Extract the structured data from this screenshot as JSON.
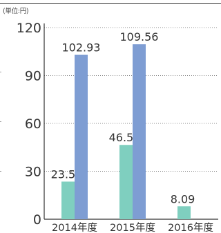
{
  "unit_label": "(単位:円)",
  "chart_data": {
    "type": "bar",
    "categories": [
      "2014年度",
      "2015年度",
      "2016年度"
    ],
    "series": [
      {
        "color": "#7fcfbf",
        "values": [
          23.55,
          46.52,
          8.09
        ]
      },
      {
        "color": "#7e9dd3",
        "values": [
          102.93,
          109.56,
          null
        ]
      }
    ],
    "data_labels": [
      [
        "23.55",
        "46.52",
        "8.09"
      ],
      [
        "102.93",
        "109.56",
        ""
      ]
    ],
    "yticks": [
      0,
      30,
      60,
      90,
      120
    ],
    "ytick_labels": [
      "0",
      "30",
      "60",
      "90",
      "120"
    ],
    "ylim": [
      0,
      120
    ],
    "grid": "dotted-horizontal",
    "legend": "none"
  }
}
